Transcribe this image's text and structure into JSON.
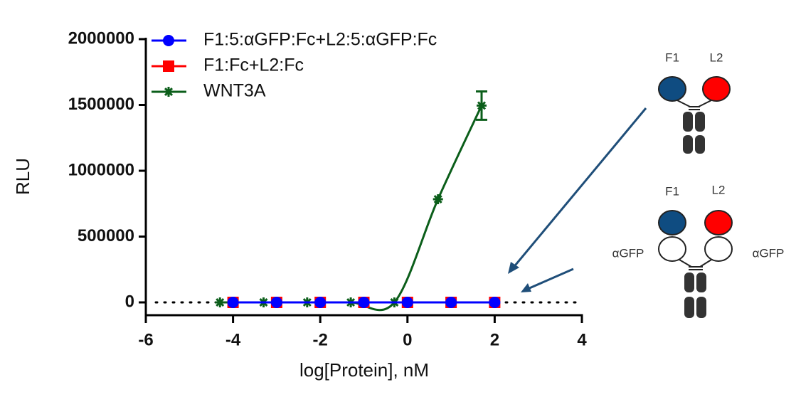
{
  "chart_data": {
    "type": "line",
    "x_label": "log[Protein], nM",
    "y_label": "RLU",
    "xlim": [
      -6,
      4
    ],
    "xticks": [
      -6,
      -4,
      -2,
      0,
      2,
      4
    ],
    "ylim": [
      0,
      2000000
    ],
    "yticks": [
      0,
      500000,
      1000000,
      1500000,
      2000000
    ],
    "legend": "upper left",
    "series": [
      {
        "name": "F1:5:αGFP:Fc+L2:5:αGFP:Fc",
        "color": "#0000ff",
        "marker": "circle",
        "x": [
          -4,
          -3,
          -2,
          -1,
          0,
          1,
          2
        ],
        "values": [
          0,
          0,
          0,
          0,
          0,
          0,
          0
        ]
      },
      {
        "name": "F1:Fc+L2:Fc",
        "color": "#ff0000",
        "marker": "square",
        "x": [
          -4,
          -3,
          -2,
          -1,
          0,
          1,
          2
        ],
        "values": [
          0,
          0,
          0,
          0,
          0,
          0,
          0
        ]
      },
      {
        "name": "WNT3A",
        "color": "#0b5e1a",
        "marker": "asterisk",
        "curve": "smooth",
        "x": [
          -4.3,
          -3.3,
          -2.3,
          -1.3,
          -0.3,
          0.7,
          1.7
        ],
        "values": [
          0,
          0,
          0,
          0,
          0,
          784000,
          1495000
        ],
        "errors": [
          null,
          null,
          null,
          null,
          null,
          null,
          108000
        ]
      }
    ]
  },
  "diagram": {
    "top": {
      "left": "F1",
      "right": "L2"
    },
    "bottom": {
      "left": "F1",
      "right": "L2",
      "left_arm": "αGFP",
      "right_arm": "αGFP"
    }
  }
}
